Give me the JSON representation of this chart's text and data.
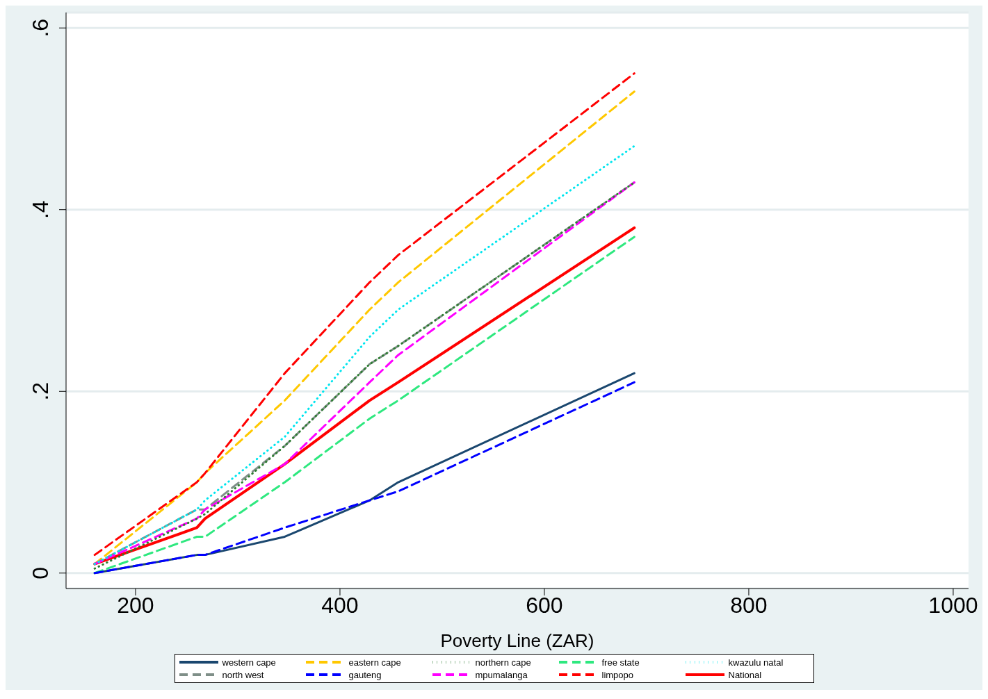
{
  "chart_data": {
    "type": "line",
    "xlabel": "Poverty Line (ZAR)",
    "x": [
      160,
      260,
      268,
      346,
      429,
      457,
      688
    ],
    "xlim": [
      132,
      1015
    ],
    "xticks": [
      200,
      400,
      600,
      800,
      1000
    ],
    "ylim": [
      -0.017,
      0.617
    ],
    "yticks": [
      {
        "value": 0,
        "label": "0"
      },
      {
        "value": 0.2,
        "label": ".2"
      },
      {
        "value": 0.4,
        "label": ".4"
      },
      {
        "value": 0.6,
        "label": ".6"
      }
    ],
    "grid": "y",
    "legend": "bottom",
    "marker": "none",
    "series": [
      {
        "name": "western cape",
        "color": "#1a476f",
        "line_style": "solid",
        "values": [
          0,
          0.02,
          0.02,
          0.04,
          0.08,
          0.1,
          0.22
        ]
      },
      {
        "name": "eastern cape",
        "color": "#ffc800",
        "line_style": "dashed",
        "values": [
          0.01,
          0.1,
          0.11,
          0.19,
          0.29,
          0.32,
          0.53
        ]
      },
      {
        "name": "northern cape",
        "color": "#2e7d32",
        "line_style": "dotted",
        "values": [
          0.005,
          0.06,
          0.065,
          0.14,
          0.23,
          0.25,
          0.43
        ]
      },
      {
        "name": "free state",
        "color": "#2ee87f",
        "line_style": "dashed",
        "values": [
          0,
          0.04,
          0.04,
          0.1,
          0.17,
          0.19,
          0.37
        ]
      },
      {
        "name": "kwazulu natal",
        "color": "#00e5ee",
        "line_style": "dotted",
        "values": [
          0.01,
          0.07,
          0.08,
          0.15,
          0.26,
          0.29,
          0.47
        ]
      },
      {
        "name": "north west",
        "color": "#7f8f88",
        "line_style": "dashed",
        "values": [
          0.01,
          0.07,
          0.07,
          0.14,
          0.23,
          0.25,
          0.43
        ]
      },
      {
        "name": "gauteng",
        "color": "#0000ff",
        "line_style": "dashed",
        "values": [
          0,
          0.02,
          0.02,
          0.05,
          0.08,
          0.09,
          0.21
        ]
      },
      {
        "name": "mpumalanga",
        "color": "#ff00ff",
        "line_style": "dashed",
        "values": [
          0.01,
          0.06,
          0.07,
          0.12,
          0.21,
          0.24,
          0.43
        ]
      },
      {
        "name": "limpopo",
        "color": "#ff0000",
        "line_style": "dashed",
        "values": [
          0.02,
          0.1,
          0.11,
          0.22,
          0.32,
          0.35,
          0.55
        ]
      },
      {
        "name": "National",
        "color": "#ff0000",
        "line_style": "solid",
        "values": [
          0.01,
          0.05,
          0.06,
          0.12,
          0.19,
          0.21,
          0.38
        ]
      }
    ]
  }
}
